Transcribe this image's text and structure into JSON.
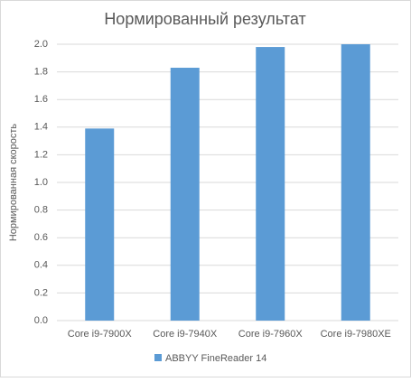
{
  "chart_data": {
    "type": "bar",
    "title": "Нормированный результат",
    "y_label": "Нормированная скорость",
    "categories": [
      "Core i9-7900X",
      "Core i9-7940X",
      "Core i9-7960X",
      "Core i9-7980XE"
    ],
    "series": [
      {
        "name": "ABBYY FineReader 14",
        "color": "#5b9bd5",
        "values": [
          1.39,
          1.83,
          1.98,
          2.0
        ]
      }
    ],
    "ylim": [
      0,
      2.0
    ],
    "yticks": [
      {
        "value": 0,
        "label": "0.0"
      },
      0.2,
      0.4,
      0.6,
      0.8,
      {
        "value": 1.0,
        "label": "1.0"
      },
      1.2,
      1.4,
      1.6,
      1.8,
      {
        "value": 2.0,
        "label": "2.0"
      }
    ],
    "grid": true,
    "legend": "bottom"
  }
}
